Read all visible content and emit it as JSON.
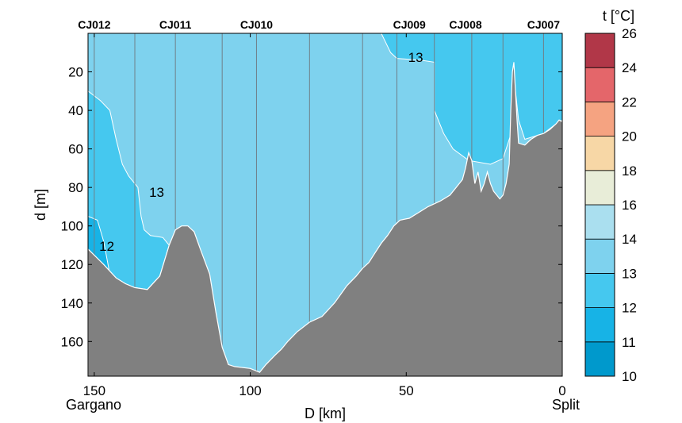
{
  "chart_data": {
    "type": "contour-section",
    "xlabel": "D [km]",
    "ylabel": "d [m]",
    "xlim": [
      152,
      0
    ],
    "ylim": [
      0,
      178
    ],
    "x_ticks": [
      150,
      100,
      50,
      0
    ],
    "y_ticks": [
      20,
      40,
      60,
      80,
      100,
      120,
      140,
      160
    ],
    "end_labels": {
      "left": "Gargano",
      "right": "Split"
    },
    "stations": [
      {
        "name": "CJ012",
        "x": 150
      },
      {
        "name": "CJ011",
        "x": 124
      },
      {
        "name": "CJ010",
        "x": 98
      },
      {
        "name": "CJ009",
        "x": 49
      },
      {
        "name": "CJ008",
        "x": 31
      },
      {
        "name": "CJ007",
        "x": 6
      }
    ],
    "cast_lines_x": [
      150,
      137,
      124,
      109,
      98,
      81,
      64,
      53,
      41,
      29,
      19,
      6
    ],
    "bathymetry": [
      [
        152,
        112
      ],
      [
        147,
        120
      ],
      [
        143,
        127
      ],
      [
        140,
        130
      ],
      [
        137,
        132
      ],
      [
        133,
        133
      ],
      [
        129,
        126
      ],
      [
        126,
        110
      ],
      [
        124,
        102
      ],
      [
        122,
        100
      ],
      [
        120,
        100
      ],
      [
        118,
        103
      ],
      [
        116,
        112
      ],
      [
        113,
        125
      ],
      [
        111,
        145
      ],
      [
        109,
        163
      ],
      [
        107,
        172
      ],
      [
        105,
        173
      ],
      [
        100,
        174
      ],
      [
        97,
        176
      ],
      [
        95,
        172
      ],
      [
        92,
        167
      ],
      [
        90,
        164
      ],
      [
        88,
        160
      ],
      [
        85,
        155
      ],
      [
        81,
        150
      ],
      [
        77,
        147
      ],
      [
        73,
        140
      ],
      [
        69,
        131
      ],
      [
        66,
        126
      ],
      [
        64,
        122
      ],
      [
        62,
        119
      ],
      [
        60,
        114
      ],
      [
        58,
        109
      ],
      [
        56,
        105
      ],
      [
        54,
        100
      ],
      [
        52,
        97
      ],
      [
        49,
        96
      ],
      [
        46,
        93
      ],
      [
        43,
        90
      ],
      [
        39,
        87
      ],
      [
        36,
        84
      ],
      [
        34,
        80
      ],
      [
        32,
        76
      ],
      [
        31,
        70
      ],
      [
        30,
        62
      ],
      [
        29,
        66
      ],
      [
        28,
        78
      ],
      [
        27,
        72
      ],
      [
        26,
        82
      ],
      [
        25,
        78
      ],
      [
        24,
        72
      ],
      [
        23,
        78
      ],
      [
        22,
        82
      ],
      [
        21,
        84
      ],
      [
        20,
        86
      ],
      [
        19,
        84
      ],
      [
        18,
        78
      ],
      [
        17,
        68
      ],
      [
        16.5,
        40
      ],
      [
        16,
        20
      ],
      [
        15.5,
        15
      ],
      [
        15,
        30
      ],
      [
        14.5,
        45
      ],
      [
        14,
        57
      ],
      [
        12,
        58
      ],
      [
        10,
        55
      ],
      [
        8,
        53
      ],
      [
        6,
        52
      ],
      [
        4,
        50
      ],
      [
        2,
        47
      ],
      [
        1,
        45
      ],
      [
        0,
        46
      ]
    ],
    "temperature_regions": [
      {
        "class_min": 12,
        "class_max": 13,
        "color": "#45C8EF",
        "boundary": [
          [
            152,
            30
          ],
          [
            148,
            35
          ],
          [
            145,
            40
          ],
          [
            143,
            55
          ],
          [
            141,
            68
          ],
          [
            139,
            74
          ],
          [
            136,
            80
          ],
          [
            135,
            95
          ],
          [
            134,
            102
          ],
          [
            132,
            105
          ],
          [
            128,
            106
          ],
          [
            126,
            110
          ],
          [
            129,
            126
          ],
          [
            133,
            133
          ],
          [
            137,
            132
          ],
          [
            140,
            130
          ],
          [
            143,
            127
          ],
          [
            147,
            120
          ],
          [
            152,
            112
          ]
        ]
      },
      {
        "class_min": 11,
        "class_max": 12,
        "color": "#17B3E6",
        "boundary": [
          [
            152,
            95
          ],
          [
            149,
            97
          ],
          [
            147,
            108
          ],
          [
            145,
            125
          ],
          [
            147,
            120
          ],
          [
            152,
            112
          ]
        ]
      },
      {
        "class_min": 12,
        "class_max": 13,
        "color": "#45C8EF",
        "boundary": [
          [
            58,
            0
          ],
          [
            55,
            10
          ],
          [
            53,
            13
          ],
          [
            45,
            14
          ],
          [
            41,
            15
          ],
          [
            41,
            40
          ],
          [
            38,
            52
          ],
          [
            35,
            60
          ],
          [
            30,
            66
          ],
          [
            23,
            68
          ],
          [
            19,
            65
          ],
          [
            16,
            50
          ],
          [
            15,
            30
          ],
          [
            14,
            45
          ],
          [
            12,
            55
          ],
          [
            6,
            52
          ],
          [
            2,
            47
          ],
          [
            0,
            45
          ],
          [
            0,
            0
          ]
        ]
      }
    ],
    "default_region": {
      "class_min": 13,
      "class_max": 14,
      "color": "#7ED2EE"
    },
    "contour_labels": [
      {
        "text": "13",
        "x": 130,
        "y": 83
      },
      {
        "text": "12",
        "x": 146,
        "y": 111
      },
      {
        "text": "13",
        "x": 47,
        "y": 13
      }
    ],
    "colorbar": {
      "title": "t [°C]",
      "ticks": [
        10,
        11,
        12,
        13,
        14,
        16,
        18,
        20,
        22,
        24,
        26
      ],
      "colors": [
        "#0099CC",
        "#17B3E6",
        "#45C8EF",
        "#7ED2EE",
        "#AADFEF",
        "#E8EDD8",
        "#F7D7A6",
        "#F5A381",
        "#E4666A",
        "#B13748"
      ]
    },
    "bathymetry_color": "#808080"
  }
}
